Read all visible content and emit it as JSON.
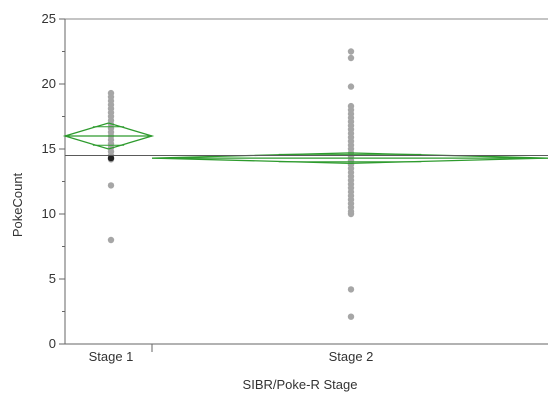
{
  "chart_data": {
    "type": "scatter",
    "subtype": "oneway-means-diamonds",
    "xlabel": "SIBR/Poke-R Stage",
    "ylabel": "PokeCount",
    "ylim": [
      0,
      25
    ],
    "yticks": [
      0,
      5,
      10,
      15,
      20,
      25
    ],
    "grand_mean": 14.5,
    "colors": {
      "points": "#a6a6a6",
      "diamond": "#2e9b2e",
      "mean_line": "#5a5a5a",
      "axis": "#666666",
      "highlight": "#222222"
    },
    "groups": [
      {
        "label": "Stage 1",
        "mean": 16.0,
        "ci": [
          15.0,
          17.0
        ],
        "points": [
          19.3,
          19.0,
          18.7,
          18.4,
          18.1,
          17.8,
          17.5,
          17.2,
          16.9,
          16.6,
          16.3,
          16.0,
          15.7,
          15.4,
          15.1,
          14.8,
          14.5,
          14.2,
          12.2,
          8.0
        ],
        "highlight_points": [
          14.3
        ]
      },
      {
        "label": "Stage 2",
        "mean": 14.3,
        "ci": [
          13.9,
          14.7
        ],
        "points": [
          22.5,
          22.0,
          19.8,
          18.3,
          18.0,
          17.7,
          17.4,
          17.1,
          16.8,
          16.5,
          16.2,
          15.9,
          15.6,
          15.3,
          15.0,
          14.7,
          14.4,
          14.1,
          13.8,
          13.5,
          13.2,
          12.9,
          12.6,
          12.3,
          12.0,
          11.7,
          11.4,
          11.1,
          10.8,
          10.5,
          10.2,
          10.0,
          4.2,
          2.1
        ],
        "highlight_points": []
      }
    ]
  }
}
